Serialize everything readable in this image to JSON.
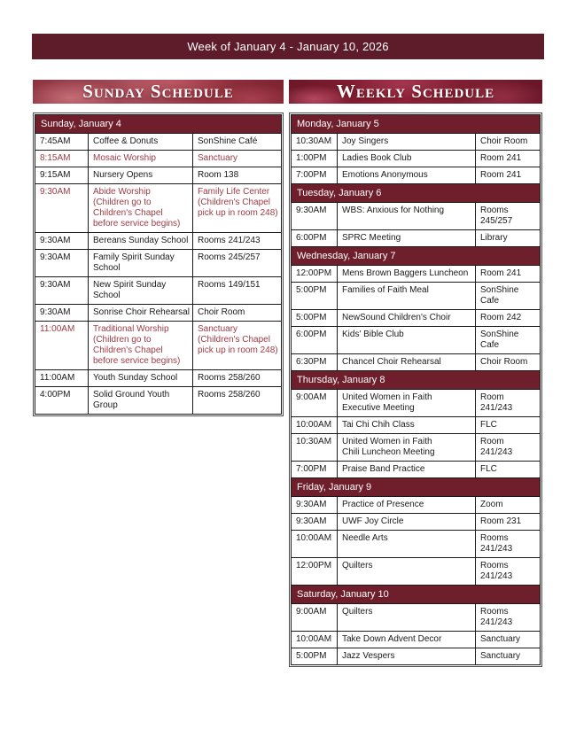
{
  "banner": {
    "text": "Week of January 4 - January 10, 2026"
  },
  "colors": {
    "banner_bg": "#5e1b2a",
    "day_header_bg": "#6f1e2b",
    "highlight_text": "#9e3a44",
    "body_text": "#1a1a1a"
  },
  "sunday_schedule": {
    "title": "Sunday Schedule",
    "day_header": "Sunday, January 4",
    "rows": [
      {
        "time": "7:45AM",
        "event": "Coffee & Donuts",
        "location": "SonShine Café",
        "highlight": false
      },
      {
        "time": "8:15AM",
        "event": "Mosaic Worship",
        "location": "Sanctuary",
        "highlight": true
      },
      {
        "time": "9:15AM",
        "event": "Nursery Opens",
        "location": "Room 138",
        "highlight": false
      },
      {
        "time": "9:30AM",
        "event": "Abide Worship\n(Children go to\nChildren's Chapel\nbefore service begins)",
        "location": "Family Life Center\n(Children's Chapel\npick up in room 248)",
        "highlight": true
      },
      {
        "time": "9:30AM",
        "event": "Bereans Sunday School",
        "location": "Rooms 241/243",
        "highlight": false
      },
      {
        "time": "9:30AM",
        "event": "Family Spirit Sunday\nSchool",
        "location": "Rooms 245/257",
        "highlight": false
      },
      {
        "time": "9:30AM",
        "event": "New Spirit Sunday\nSchool",
        "location": "Rooms 149/151",
        "highlight": false
      },
      {
        "time": "9:30AM",
        "event": "Sonrise Choir Rehearsal",
        "location": "Choir Room",
        "highlight": false
      },
      {
        "time": "11:00AM",
        "event": "Traditional Worship\n(Children go to\nChildren's Chapel\nbefore service begins)",
        "location": "Sanctuary\n(Children's Chapel\npick up in room 248)",
        "highlight": true
      },
      {
        "time": "11:00AM",
        "event": "Youth Sunday School",
        "location": "Rooms 258/260",
        "highlight": false
      },
      {
        "time": "4:00PM",
        "event": "Solid Ground Youth\nGroup",
        "location": "Rooms 258/260",
        "highlight": false
      }
    ]
  },
  "weekly_schedule": {
    "title": "Weekly Schedule",
    "days": [
      {
        "label": "Monday, January 5",
        "rows": [
          {
            "time": "10:30AM",
            "event": "Joy Singers",
            "location": "Choir Room"
          },
          {
            "time": "1:00PM",
            "event": "Ladies Book Club",
            "location": "Room 241"
          },
          {
            "time": "7:00PM",
            "event": "Emotions Anonymous",
            "location": "Room 241"
          }
        ]
      },
      {
        "label": "Tuesday, January 6",
        "rows": [
          {
            "time": "9:30AM",
            "event": "WBS: Anxious for Nothing",
            "location": "Rooms\n245/257"
          },
          {
            "time": "6:00PM",
            "event": "SPRC Meeting",
            "location": "Library"
          }
        ]
      },
      {
        "label": "Wednesday, January 7",
        "rows": [
          {
            "time": "12:00PM",
            "event": "Mens Brown Baggers Luncheon",
            "location": "Room 241"
          },
          {
            "time": "5:00PM",
            "event": "Families of Faith Meal",
            "location": "SonShine Cafe"
          },
          {
            "time": "5:00PM",
            "event": "NewSound Children's Choir",
            "location": "Room 242"
          },
          {
            "time": "6:00PM",
            "event": "Kids' Bible Club",
            "location": "SonShine Cafe"
          },
          {
            "time": "6:30PM",
            "event": "Chancel Choir Rehearsal",
            "location": "Choir Room"
          }
        ]
      },
      {
        "label": "Thursday, January 8",
        "rows": [
          {
            "time": "9:00AM",
            "event": "United Women in Faith\nExecutive Meeting",
            "location": "Room 241/243"
          },
          {
            "time": "10:00AM",
            "event": "Tai Chi Chih Class",
            "location": "FLC"
          },
          {
            "time": "10:30AM",
            "event": "United Women in Faith\nChili Luncheon Meeting",
            "location": "Room 241/243"
          },
          {
            "time": "7:00PM",
            "event": "Praise Band Practice",
            "location": "FLC"
          }
        ]
      },
      {
        "label": "Friday, January 9",
        "rows": [
          {
            "time": "9:30AM",
            "event": "Practice of Presence",
            "location": "Zoom"
          },
          {
            "time": "9:30AM",
            "event": "UWF Joy Circle",
            "location": "Room 231"
          },
          {
            "time": "10:00AM",
            "event": "Needle Arts",
            "location": "Rooms\n241/243"
          },
          {
            "time": "12:00PM",
            "event": "Quilters",
            "location": "Rooms\n241/243"
          }
        ]
      },
      {
        "label": "Saturday, January 10",
        "rows": [
          {
            "time": "9:00AM",
            "event": "Quilters",
            "location": "Rooms\n241/243"
          },
          {
            "time": "10:00AM",
            "event": "Take Down Advent Decor",
            "location": "Sanctuary"
          },
          {
            "time": "5:00PM",
            "event": "Jazz Vespers",
            "location": "Sanctuary"
          }
        ]
      }
    ]
  }
}
